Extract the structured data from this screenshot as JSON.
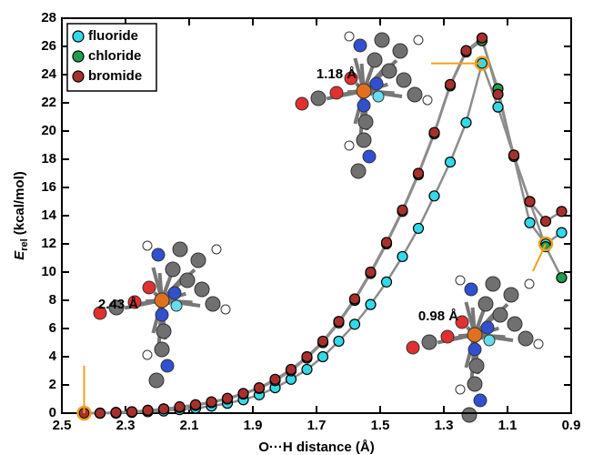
{
  "chart_data": {
    "type": "line",
    "x_label": "O···H distance (Å)",
    "y_label": "E",
    "y_label_sub": "rel",
    "y_label_unit": "(kcal/mol)",
    "annotations": [
      "1.18 Å",
      "2.43 Å",
      "0.98 Å"
    ],
    "x": [
      2.43,
      2.38,
      2.33,
      2.28,
      2.23,
      2.18,
      2.13,
      2.08,
      2.03,
      1.98,
      1.93,
      1.88,
      1.83,
      1.78,
      1.73,
      1.68,
      1.63,
      1.58,
      1.53,
      1.48,
      1.43,
      1.38,
      1.33,
      1.28,
      1.23,
      1.18,
      1.13,
      1.08,
      1.03,
      0.98,
      0.93
    ],
    "series": [
      {
        "name": "fluoride",
        "color": "#33d9e8",
        "values": [
          0,
          0,
          0,
          0.05,
          0.1,
          0.15,
          0.25,
          0.35,
          0.5,
          0.7,
          0.95,
          1.3,
          1.8,
          2.4,
          3.1,
          4.0,
          5.1,
          6.3,
          7.7,
          9.3,
          11.1,
          13.1,
          15.4,
          17.8,
          20.6,
          24.8,
          21.7,
          18.2,
          13.5,
          12.0,
          12.8
        ]
      },
      {
        "name": "chloride",
        "color": "#1e9e4c",
        "values": [
          0,
          0,
          0.05,
          0.1,
          0.2,
          0.3,
          0.4,
          0.55,
          0.75,
          1.0,
          1.35,
          1.75,
          2.3,
          3.0,
          3.9,
          5.0,
          6.4,
          8.0,
          9.9,
          12.0,
          14.3,
          16.9,
          19.8,
          23.2,
          25.6,
          26.4,
          23.0,
          18.2,
          15.0,
          11.8,
          9.6
        ]
      },
      {
        "name": "bromide",
        "color": "#a8302c",
        "values": [
          0,
          0,
          0.05,
          0.1,
          0.2,
          0.3,
          0.45,
          0.6,
          0.8,
          1.05,
          1.4,
          1.8,
          2.4,
          3.1,
          4.0,
          5.1,
          6.5,
          8.1,
          10.0,
          12.1,
          14.4,
          17.0,
          19.9,
          23.3,
          25.7,
          26.6,
          22.6,
          18.3,
          15.0,
          13.6,
          14.3
        ]
      }
    ],
    "line_color": "#8c8c8c",
    "highlight_color": "#f0a020",
    "xlim": [
      2.5,
      0.9
    ],
    "xticks": [
      2.5,
      2.3,
      2.1,
      1.9,
      1.7,
      1.5,
      1.3,
      1.1,
      0.9
    ],
    "ylim": [
      0,
      28
    ],
    "yticks": [
      0,
      2,
      4,
      6,
      8,
      10,
      12,
      14,
      16,
      18,
      20,
      22,
      24,
      26,
      28
    ],
    "legend": "upper-left"
  }
}
